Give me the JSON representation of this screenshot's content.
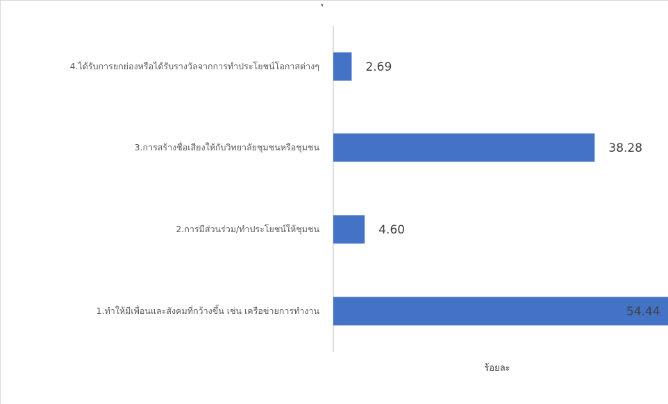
{
  "chart_data": {
    "type": "bar",
    "orientation": "horizontal",
    "title_fragment": "ุ",
    "xlabel": "ร้อยละ",
    "ylabel": "",
    "xlim": [
      0,
      60
    ],
    "grid": false,
    "legend": "none",
    "bar_color": "#4472C4",
    "categories": [
      "4.ได้รับการยกย่องหรือได้รับรางวัลจากการทำประโยชน์โอกาสต่างๆ",
      "3.การสร้างชื่อเสียงให้กับวิทยาลัยชุมชนหรือชุมชน",
      "2.การมีส่วนร่วม/ทำประโยชน์ให้ชุมชน",
      "1.ทำให้มีเพื่อนและสังคมที่กว้างขึ้น เช่น เครือข่ายการทำงาน"
    ],
    "values": [
      2.69,
      38.28,
      4.6,
      54.44
    ],
    "value_labels": [
      "2.69",
      "38.28",
      "4.60",
      "54.44"
    ]
  }
}
